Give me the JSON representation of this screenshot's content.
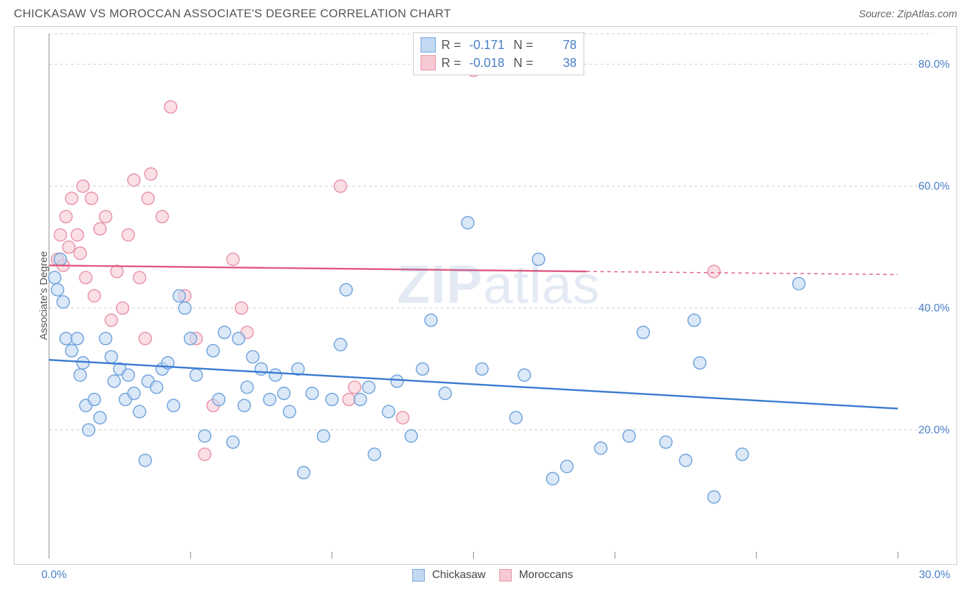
{
  "title": "CHICKASAW VS MOROCCAN ASSOCIATE'S DEGREE CORRELATION CHART",
  "source": "Source: ZipAtlas.com",
  "y_axis_label": "Associate's Degree",
  "watermark": "ZIPatlas",
  "chart": {
    "type": "scatter",
    "xlim": [
      0,
      30
    ],
    "ylim": [
      0,
      85
    ],
    "x_ticks": [
      0,
      5,
      10,
      15,
      20,
      25,
      30
    ],
    "y_gridlines": [
      20,
      40,
      60,
      80
    ],
    "y_tick_labels": [
      "20.0%",
      "40.0%",
      "60.0%",
      "80.0%"
    ],
    "x_min_label": "0.0%",
    "x_max_label": "30.0%",
    "background_color": "#ffffff",
    "grid_color": "#cccccc",
    "grid_dash": "4,4",
    "border_color": "#cccccc",
    "marker_radius": 9,
    "marker_stroke_width": 1.5,
    "trendline_width": 2.5
  },
  "series": {
    "chickasaw": {
      "label": "Chickasaw",
      "fill": "#c3d9f2",
      "stroke": "#6fa3dd",
      "fill_opacity": 0.6,
      "trendline": {
        "color": "#3b7bd1",
        "y_at_x0": 31.5,
        "y_at_x30": 23.5
      },
      "R": "-0.171",
      "N": "78",
      "points": [
        [
          0.2,
          45
        ],
        [
          0.3,
          43
        ],
        [
          0.4,
          48
        ],
        [
          0.5,
          41
        ],
        [
          0.6,
          35
        ],
        [
          0.8,
          33
        ],
        [
          1.0,
          35
        ],
        [
          1.1,
          29
        ],
        [
          1.2,
          31
        ],
        [
          1.3,
          24
        ],
        [
          1.4,
          20
        ],
        [
          1.6,
          25
        ],
        [
          1.8,
          22
        ],
        [
          2.0,
          35
        ],
        [
          2.2,
          32
        ],
        [
          2.3,
          28
        ],
        [
          2.5,
          30
        ],
        [
          2.7,
          25
        ],
        [
          2.8,
          29
        ],
        [
          3.0,
          26
        ],
        [
          3.2,
          23
        ],
        [
          3.4,
          15
        ],
        [
          3.5,
          28
        ],
        [
          3.8,
          27
        ],
        [
          4.0,
          30
        ],
        [
          4.2,
          31
        ],
        [
          4.4,
          24
        ],
        [
          4.6,
          42
        ],
        [
          4.8,
          40
        ],
        [
          5.0,
          35
        ],
        [
          5.2,
          29
        ],
        [
          5.5,
          19
        ],
        [
          5.8,
          33
        ],
        [
          6.0,
          25
        ],
        [
          6.2,
          36
        ],
        [
          6.5,
          18
        ],
        [
          6.7,
          35
        ],
        [
          6.9,
          24
        ],
        [
          7.0,
          27
        ],
        [
          7.2,
          32
        ],
        [
          7.5,
          30
        ],
        [
          7.8,
          25
        ],
        [
          8.0,
          29
        ],
        [
          8.3,
          26
        ],
        [
          8.5,
          23
        ],
        [
          8.8,
          30
        ],
        [
          9.0,
          13
        ],
        [
          9.3,
          26
        ],
        [
          9.7,
          19
        ],
        [
          10.0,
          25
        ],
        [
          10.3,
          34
        ],
        [
          10.5,
          43
        ],
        [
          11.0,
          25
        ],
        [
          11.3,
          27
        ],
        [
          11.5,
          16
        ],
        [
          12.0,
          23
        ],
        [
          12.3,
          28
        ],
        [
          12.8,
          19
        ],
        [
          13.2,
          30
        ],
        [
          13.5,
          38
        ],
        [
          14.0,
          26
        ],
        [
          14.8,
          54
        ],
        [
          15.3,
          30
        ],
        [
          16.5,
          22
        ],
        [
          16.8,
          29
        ],
        [
          17.3,
          48
        ],
        [
          17.8,
          12
        ],
        [
          18.3,
          14
        ],
        [
          19.5,
          17
        ],
        [
          20.5,
          19
        ],
        [
          21.0,
          36
        ],
        [
          21.8,
          18
        ],
        [
          22.5,
          15
        ],
        [
          22.8,
          38
        ],
        [
          23.5,
          9
        ],
        [
          24.5,
          16
        ],
        [
          26.5,
          44
        ],
        [
          23.0,
          31
        ]
      ]
    },
    "moroccans": {
      "label": "Moroccans",
      "fill": "#f6c9d3",
      "stroke": "#e893aa",
      "fill_opacity": 0.6,
      "trendline": {
        "color": "#e05a85",
        "y_at_x0": 47,
        "y_at_x19": 46,
        "dash_from_x": 19,
        "y_at_x30": 45.5
      },
      "R": "-0.018",
      "N": "38",
      "points": [
        [
          0.3,
          48
        ],
        [
          0.4,
          52
        ],
        [
          0.5,
          47
        ],
        [
          0.6,
          55
        ],
        [
          0.7,
          50
        ],
        [
          0.8,
          58
        ],
        [
          1.0,
          52
        ],
        [
          1.1,
          49
        ],
        [
          1.2,
          60
        ],
        [
          1.3,
          45
        ],
        [
          1.5,
          58
        ],
        [
          1.6,
          42
        ],
        [
          1.8,
          53
        ],
        [
          2.0,
          55
        ],
        [
          2.2,
          38
        ],
        [
          2.4,
          46
        ],
        [
          2.6,
          40
        ],
        [
          2.8,
          52
        ],
        [
          3.0,
          61
        ],
        [
          3.2,
          45
        ],
        [
          3.4,
          35
        ],
        [
          3.5,
          58
        ],
        [
          3.6,
          62
        ],
        [
          4.0,
          55
        ],
        [
          4.3,
          73
        ],
        [
          4.8,
          42
        ],
        [
          5.2,
          35
        ],
        [
          5.5,
          16
        ],
        [
          5.8,
          24
        ],
        [
          6.5,
          48
        ],
        [
          6.8,
          40
        ],
        [
          7.0,
          36
        ],
        [
          10.3,
          60
        ],
        [
          10.6,
          25
        ],
        [
          10.8,
          27
        ],
        [
          12.5,
          22
        ],
        [
          15.0,
          79
        ],
        [
          23.5,
          46
        ]
      ]
    }
  },
  "top_legend": {
    "rows": [
      {
        "swatch_fill": "#c3d9f2",
        "swatch_stroke": "#6fa3dd",
        "R": "-0.171",
        "N": "78"
      },
      {
        "swatch_fill": "#f6c9d3",
        "swatch_stroke": "#e893aa",
        "R": "-0.018",
        "N": "38"
      }
    ]
  },
  "bottom_legend": [
    {
      "swatch_fill": "#c3d9f2",
      "swatch_stroke": "#6fa3dd",
      "label": "Chickasaw"
    },
    {
      "swatch_fill": "#f6c9d3",
      "swatch_stroke": "#e893aa",
      "label": "Moroccans"
    }
  ]
}
